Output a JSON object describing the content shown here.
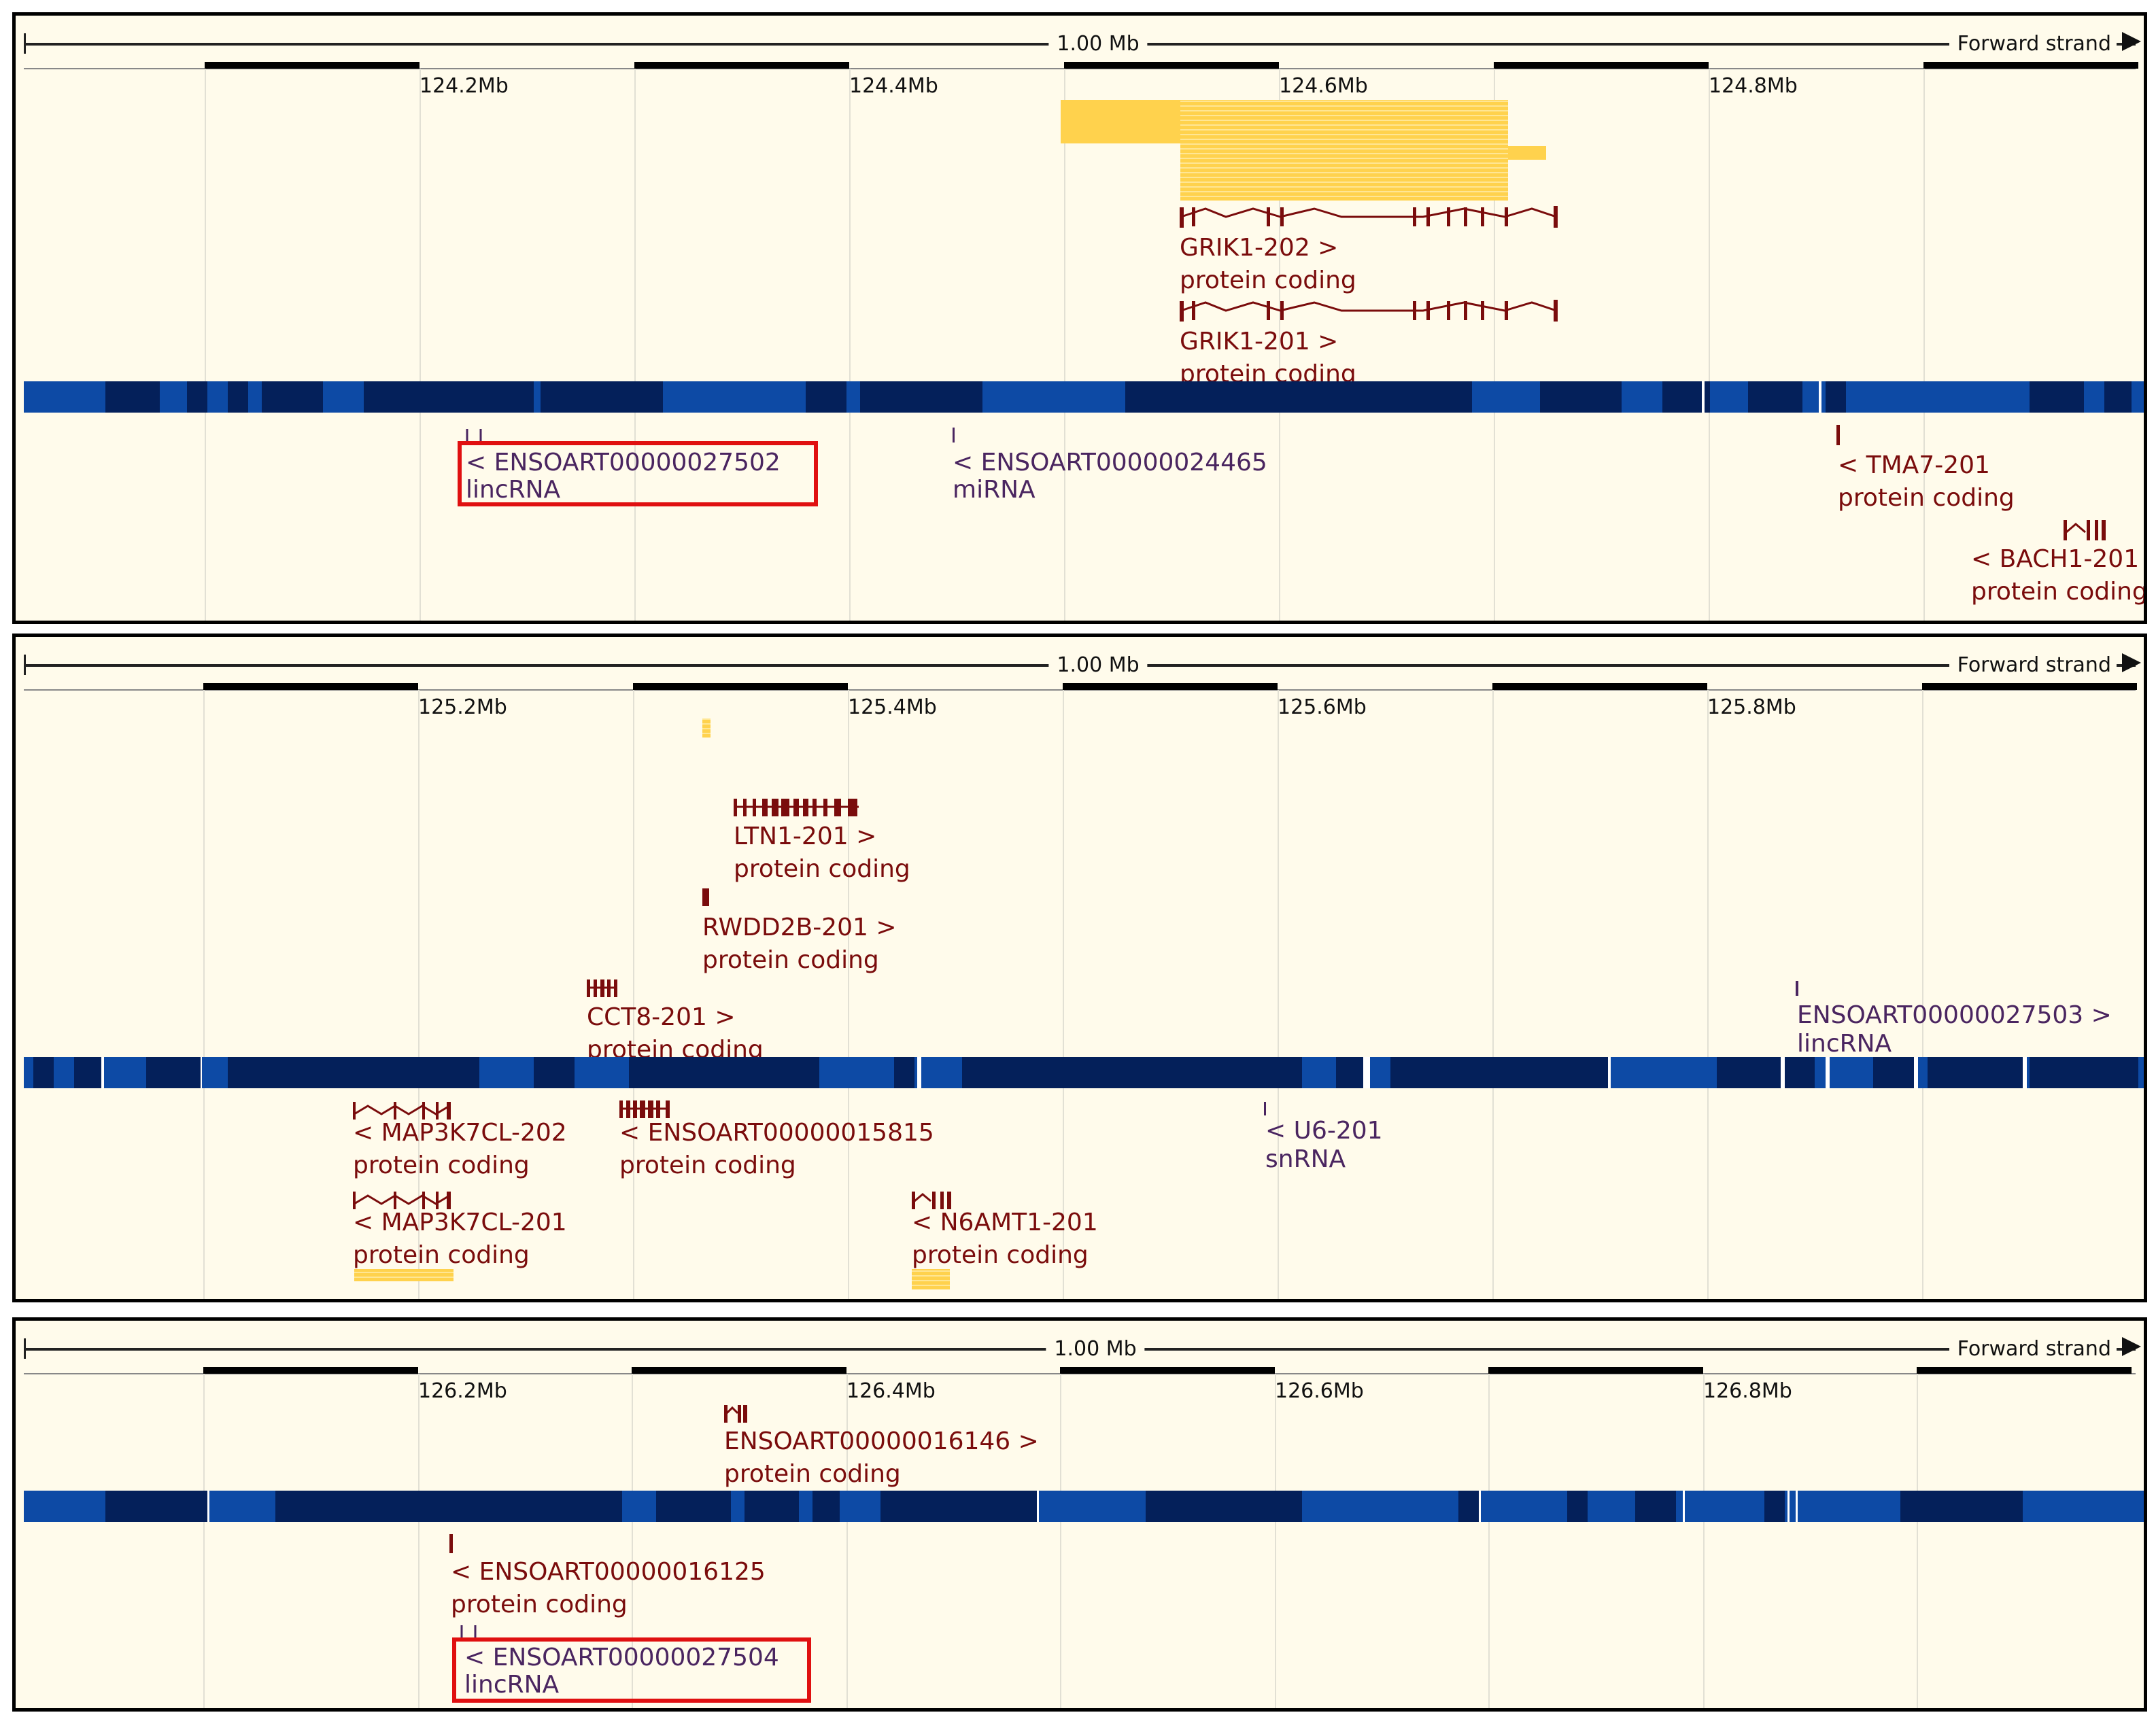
{
  "panels": [
    {
      "scale_label": "1.00 Mb",
      "strand_label": "Forward strand",
      "ticks": [
        "124.2Mb",
        "124.4Mb",
        "124.6Mb",
        "124.8Mb"
      ],
      "genes": [
        {
          "line1": "GRIK1-202 >",
          "line2": "protein coding"
        },
        {
          "line1": "GRIK1-201 >",
          "line2": "protein coding"
        },
        {
          "line1": "< ENSOART00000027502",
          "line2": "lincRNA"
        },
        {
          "line1": "< ENSOART00000024465",
          "line2": "miRNA"
        },
        {
          "line1": "< TMA7-201",
          "line2": "protein coding"
        },
        {
          "line1": "< BACH1-201",
          "line2": "protein coding"
        }
      ]
    },
    {
      "scale_label": "1.00 Mb",
      "strand_label": "Forward strand",
      "ticks": [
        "125.2Mb",
        "125.4Mb",
        "125.6Mb",
        "125.8Mb"
      ],
      "genes": [
        {
          "line1": "LTN1-201 >",
          "line2": "protein coding"
        },
        {
          "line1": "RWDD2B-201 >",
          "line2": "protein coding"
        },
        {
          "line1": "CCT8-201 >",
          "line2": "protein coding"
        },
        {
          "line1": "ENSOART00000027503 >",
          "line2": "lincRNA"
        },
        {
          "line1": "< MAP3K7CL-202",
          "line2": "protein coding"
        },
        {
          "line1": "< ENSOART00000015815",
          "line2": "protein coding"
        },
        {
          "line1": "< U6-201",
          "line2": "snRNA"
        },
        {
          "line1": "< MAP3K7CL-201",
          "line2": "protein coding"
        },
        {
          "line1": "< N6AMT1-201",
          "line2": "protein coding"
        }
      ]
    },
    {
      "scale_label": "1.00 Mb",
      "strand_label": "Forward strand",
      "ticks": [
        "126.2Mb",
        "126.4Mb",
        "126.6Mb",
        "126.8Mb"
      ],
      "genes": [
        {
          "line1": "ENSOART00000016146 >",
          "line2": "protein coding"
        },
        {
          "line1": "< ENSOART00000016125",
          "line2": "protein coding"
        },
        {
          "line1": "< ENSOART00000027504",
          "line2": "lincRNA"
        }
      ]
    }
  ],
  "colors": {
    "background": "#fffbeb",
    "protein_coding": "#7a0c0c",
    "noncoding": "#4a2560",
    "highlight": "#e01010",
    "band": "#0d4aa5",
    "band_dark": "#04205a",
    "exon_highlight": "#ffd24d"
  }
}
